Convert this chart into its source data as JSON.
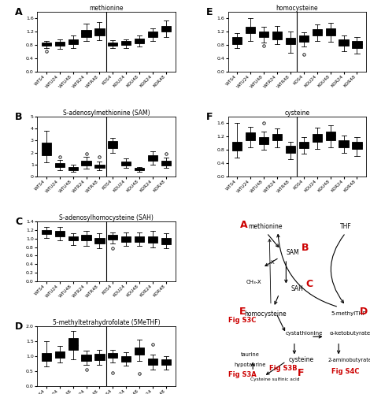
{
  "panels": {
    "A": {
      "title": "methionine",
      "label": "A",
      "ylim": [
        0,
        1.8
      ],
      "yticks": [
        0,
        0.4,
        0.8,
        1.2,
        1.6
      ],
      "groups": {
        "WT": {
          "WTS4": {
            "q1": 0.78,
            "med": 0.83,
            "q3": 0.88,
            "whislo": 0.7,
            "whishi": 0.93,
            "mean": 0.83,
            "fliers": [
              0.62
            ]
          },
          "WTU24": {
            "q1": 0.77,
            "med": 0.82,
            "q3": 0.9,
            "whislo": 0.68,
            "whishi": 0.98,
            "mean": 0.82,
            "fliers": []
          },
          "WTU48": {
            "q1": 0.82,
            "med": 0.9,
            "q3": 0.98,
            "whislo": 0.72,
            "whishi": 1.08,
            "mean": 0.9,
            "fliers": []
          },
          "WTR24": {
            "q1": 1.05,
            "med": 1.15,
            "q3": 1.25,
            "whislo": 0.92,
            "whishi": 1.45,
            "mean": 1.15,
            "fliers": []
          },
          "WTR48": {
            "q1": 1.1,
            "med": 1.2,
            "q3": 1.3,
            "whislo": 0.95,
            "whishi": 1.5,
            "mean": 1.2,
            "fliers": []
          }
        },
        "KO": {
          "KOS4": {
            "q1": 0.78,
            "med": 0.82,
            "q3": 0.88,
            "whislo": 0.7,
            "whishi": 0.94,
            "mean": 0.82,
            "fliers": []
          },
          "KOU24": {
            "q1": 0.8,
            "med": 0.85,
            "q3": 0.92,
            "whislo": 0.72,
            "whishi": 0.98,
            "mean": 0.85,
            "fliers": []
          },
          "KOU48": {
            "q1": 0.85,
            "med": 0.93,
            "q3": 1.0,
            "whislo": 0.75,
            "whishi": 1.1,
            "mean": 0.93,
            "fliers": []
          },
          "KOR24": {
            "q1": 1.05,
            "med": 1.12,
            "q3": 1.2,
            "whislo": 0.92,
            "whishi": 1.3,
            "mean": 1.12,
            "fliers": []
          },
          "KOR48": {
            "q1": 1.2,
            "med": 1.28,
            "q3": 1.38,
            "whislo": 1.05,
            "whishi": 1.55,
            "mean": 1.28,
            "fliers": []
          }
        }
      }
    },
    "B": {
      "title": "S-adenosylmethionine (SAM)",
      "label": "B",
      "ylim": [
        0,
        5
      ],
      "yticks": [
        0,
        1,
        2,
        3,
        4,
        5
      ],
      "groups": {
        "WT": {
          "WTS4": {
            "q1": 1.8,
            "med": 2.2,
            "q3": 2.8,
            "whislo": 1.2,
            "whishi": 3.8,
            "mean": 2.25,
            "fliers": []
          },
          "WTU24": {
            "q1": 0.8,
            "med": 0.95,
            "q3": 1.1,
            "whislo": 0.55,
            "whishi": 1.4,
            "mean": 0.95,
            "fliers": [
              1.65
            ]
          },
          "WTU48": {
            "q1": 0.55,
            "med": 0.7,
            "q3": 0.82,
            "whislo": 0.4,
            "whishi": 1.0,
            "mean": 0.7,
            "fliers": []
          },
          "WTR24": {
            "q1": 0.9,
            "med": 1.1,
            "q3": 1.3,
            "whislo": 0.65,
            "whishi": 1.65,
            "mean": 1.1,
            "fliers": [
              1.9
            ]
          },
          "WTR48": {
            "q1": 0.7,
            "med": 0.85,
            "q3": 1.0,
            "whislo": 0.5,
            "whishi": 1.25,
            "mean": 0.85,
            "fliers": [
              1.65
            ]
          }
        },
        "KO": {
          "KOS4": {
            "q1": 2.4,
            "med": 2.7,
            "q3": 2.95,
            "whislo": 2.0,
            "whishi": 3.2,
            "mean": 2.7,
            "fliers": []
          },
          "KOU24": {
            "q1": 0.95,
            "med": 1.1,
            "q3": 1.25,
            "whislo": 0.7,
            "whishi": 1.5,
            "mean": 1.1,
            "fliers": []
          },
          "KOU48": {
            "q1": 0.5,
            "med": 0.6,
            "q3": 0.7,
            "whislo": 0.38,
            "whishi": 0.82,
            "mean": 0.6,
            "fliers": []
          },
          "KOR24": {
            "q1": 1.3,
            "med": 1.55,
            "q3": 1.75,
            "whislo": 1.0,
            "whishi": 2.1,
            "mean": 1.55,
            "fliers": []
          },
          "KOR48": {
            "q1": 0.95,
            "med": 1.1,
            "q3": 1.3,
            "whislo": 0.7,
            "whishi": 1.6,
            "mean": 1.1,
            "fliers": [
              1.9
            ]
          }
        }
      }
    },
    "C": {
      "title": "S-adenosylhomocysteine (SAH)",
      "label": "C",
      "ylim": [
        0,
        1.4
      ],
      "yticks": [
        0,
        0.2,
        0.4,
        0.6,
        0.8,
        1.0,
        1.2,
        1.4
      ],
      "groups": {
        "WT": {
          "WTS4": {
            "q1": 1.1,
            "med": 1.15,
            "q3": 1.2,
            "whislo": 1.02,
            "whishi": 1.28,
            "mean": 1.15,
            "fliers": []
          },
          "WTU24": {
            "q1": 1.05,
            "med": 1.1,
            "q3": 1.18,
            "whislo": 0.95,
            "whishi": 1.28,
            "mean": 1.1,
            "fliers": []
          },
          "WTU48": {
            "q1": 0.95,
            "med": 1.0,
            "q3": 1.05,
            "whislo": 0.85,
            "whishi": 1.12,
            "mean": 1.0,
            "fliers": []
          },
          "WTR24": {
            "q1": 0.95,
            "med": 1.0,
            "q3": 1.08,
            "whislo": 0.82,
            "whishi": 1.18,
            "mean": 1.0,
            "fliers": []
          },
          "WTR48": {
            "q1": 0.88,
            "med": 0.95,
            "q3": 1.02,
            "whislo": 0.78,
            "whishi": 1.12,
            "mean": 0.95,
            "fliers": []
          }
        },
        "KO": {
          "KOS4": {
            "q1": 0.98,
            "med": 1.03,
            "q3": 1.08,
            "whislo": 0.88,
            "whishi": 1.15,
            "mean": 1.03,
            "fliers": [
              0.78
            ]
          },
          "KOU24": {
            "q1": 0.93,
            "med": 0.98,
            "q3": 1.05,
            "whislo": 0.83,
            "whishi": 1.15,
            "mean": 0.98,
            "fliers": []
          },
          "KOU48": {
            "q1": 0.92,
            "med": 0.98,
            "q3": 1.05,
            "whislo": 0.82,
            "whishi": 1.15,
            "mean": 0.98,
            "fliers": []
          },
          "KOR24": {
            "q1": 0.9,
            "med": 0.98,
            "q3": 1.05,
            "whislo": 0.8,
            "whishi": 1.18,
            "mean": 0.98,
            "fliers": []
          },
          "KOR48": {
            "q1": 0.87,
            "med": 0.95,
            "q3": 1.02,
            "whislo": 0.78,
            "whishi": 1.12,
            "mean": 0.95,
            "fliers": []
          }
        }
      }
    },
    "D": {
      "title": "5-methyltetrahydrofolate (5MeTHF)",
      "label": "D",
      "ylim": [
        0,
        2
      ],
      "yticks": [
        0,
        0.5,
        1.0,
        1.5,
        2.0
      ],
      "groups": {
        "WT": {
          "WTS4": {
            "q1": 0.85,
            "med": 1.0,
            "q3": 1.1,
            "whislo": 0.65,
            "whishi": 1.5,
            "mean": 1.0,
            "fliers": []
          },
          "WTU24": {
            "q1": 0.95,
            "med": 1.05,
            "q3": 1.15,
            "whislo": 0.78,
            "whishi": 1.35,
            "mean": 1.05,
            "fliers": []
          },
          "WTU48": {
            "q1": 1.2,
            "med": 1.38,
            "q3": 1.6,
            "whislo": 0.9,
            "whishi": 1.85,
            "mean": 1.4,
            "fliers": []
          },
          "WTR24": {
            "q1": 0.85,
            "med": 0.95,
            "q3": 1.05,
            "whislo": 0.7,
            "whishi": 1.18,
            "mean": 0.95,
            "fliers": [
              0.55
            ]
          },
          "WTR48": {
            "q1": 0.88,
            "med": 0.98,
            "q3": 1.08,
            "whislo": 0.72,
            "whishi": 1.22,
            "mean": 0.98,
            "fliers": []
          }
        },
        "KO": {
          "KOS4": {
            "q1": 0.95,
            "med": 1.02,
            "q3": 1.1,
            "whislo": 0.8,
            "whishi": 1.2,
            "mean": 1.02,
            "fliers": [
              0.45
            ]
          },
          "KOU24": {
            "q1": 0.82,
            "med": 0.92,
            "q3": 1.0,
            "whislo": 0.68,
            "whishi": 1.12,
            "mean": 0.92,
            "fliers": []
          },
          "KOU48": {
            "q1": 1.05,
            "med": 1.18,
            "q3": 1.3,
            "whislo": 0.85,
            "whishi": 1.55,
            "mean": 1.18,
            "fliers": [
              0.42
            ]
          },
          "KOR24": {
            "q1": 0.72,
            "med": 0.82,
            "q3": 0.93,
            "whislo": 0.55,
            "whishi": 1.05,
            "mean": 0.82,
            "fliers": [
              1.4
            ]
          },
          "KOR48": {
            "q1": 0.7,
            "med": 0.8,
            "q3": 0.9,
            "whislo": 0.55,
            "whishi": 1.0,
            "mean": 0.8,
            "fliers": []
          }
        }
      }
    },
    "E": {
      "title": "homocysteine",
      "label": "E",
      "ylim": [
        0,
        1.8
      ],
      "yticks": [
        0,
        0.4,
        0.8,
        1.2,
        1.6
      ],
      "groups": {
        "WT": {
          "WTS4": {
            "q1": 0.82,
            "med": 0.95,
            "q3": 1.05,
            "whislo": 0.7,
            "whishi": 1.15,
            "mean": 0.93,
            "fliers": []
          },
          "WTU24": {
            "q1": 1.15,
            "med": 1.25,
            "q3": 1.35,
            "whislo": 0.92,
            "whishi": 1.6,
            "mean": 1.25,
            "fliers": []
          },
          "WTU48": {
            "q1": 1.05,
            "med": 1.12,
            "q3": 1.2,
            "whislo": 0.88,
            "whishi": 1.35,
            "mean": 1.12,
            "fliers": [
              0.78
            ]
          },
          "WTR24": {
            "q1": 0.98,
            "med": 1.1,
            "q3": 1.2,
            "whislo": 0.82,
            "whishi": 1.38,
            "mean": 1.1,
            "fliers": []
          },
          "WTR48": {
            "q1": 0.82,
            "med": 0.92,
            "q3": 1.02,
            "whislo": 0.58,
            "whishi": 1.2,
            "mean": 0.92,
            "fliers": []
          }
        },
        "KO": {
          "KOS4": {
            "q1": 0.9,
            "med": 0.98,
            "q3": 1.08,
            "whislo": 0.75,
            "whishi": 1.18,
            "mean": 0.98,
            "fliers": [
              0.52
            ]
          },
          "KOU24": {
            "q1": 1.1,
            "med": 1.18,
            "q3": 1.28,
            "whislo": 0.92,
            "whishi": 1.42,
            "mean": 1.18,
            "fliers": []
          },
          "KOU48": {
            "q1": 1.1,
            "med": 1.2,
            "q3": 1.3,
            "whislo": 0.9,
            "whishi": 1.48,
            "mean": 1.2,
            "fliers": []
          },
          "KOR24": {
            "q1": 0.78,
            "med": 0.88,
            "q3": 0.98,
            "whislo": 0.62,
            "whishi": 1.1,
            "mean": 0.88,
            "fliers": []
          },
          "KOR48": {
            "q1": 0.72,
            "med": 0.82,
            "q3": 0.92,
            "whislo": 0.55,
            "whishi": 1.05,
            "mean": 0.82,
            "fliers": []
          }
        }
      }
    },
    "F": {
      "title": "cysteine",
      "label": "F",
      "ylim": [
        0,
        1.8
      ],
      "yticks": [
        0,
        0.4,
        0.8,
        1.2,
        1.6
      ],
      "groups": {
        "WT": {
          "WTS4": {
            "q1": 0.78,
            "med": 0.92,
            "q3": 1.05,
            "whislo": 0.58,
            "whishi": 1.6,
            "mean": 0.92,
            "fliers": []
          },
          "WTU24": {
            "q1": 1.1,
            "med": 1.2,
            "q3": 1.32,
            "whislo": 0.88,
            "whishi": 1.5,
            "mean": 1.2,
            "fliers": []
          },
          "WTU48": {
            "q1": 0.98,
            "med": 1.1,
            "q3": 1.18,
            "whislo": 0.8,
            "whishi": 1.35,
            "mean": 1.1,
            "fliers": [
              1.6
            ]
          },
          "WTR24": {
            "q1": 1.08,
            "med": 1.18,
            "q3": 1.28,
            "whislo": 0.88,
            "whishi": 1.45,
            "mean": 1.18,
            "fliers": []
          },
          "WTR48": {
            "q1": 0.72,
            "med": 0.82,
            "q3": 0.92,
            "whislo": 0.52,
            "whishi": 1.05,
            "mean": 0.82,
            "fliers": []
          }
        },
        "KO": {
          "KOS4": {
            "q1": 0.85,
            "med": 0.95,
            "q3": 1.05,
            "whislo": 0.68,
            "whishi": 1.18,
            "mean": 0.95,
            "fliers": []
          },
          "KOU24": {
            "q1": 1.05,
            "med": 1.15,
            "q3": 1.28,
            "whislo": 0.82,
            "whishi": 1.48,
            "mean": 1.15,
            "fliers": []
          },
          "KOU48": {
            "q1": 1.1,
            "med": 1.22,
            "q3": 1.35,
            "whislo": 0.88,
            "whishi": 1.55,
            "mean": 1.22,
            "fliers": []
          },
          "KOR24": {
            "q1": 0.88,
            "med": 0.98,
            "q3": 1.08,
            "whislo": 0.7,
            "whishi": 1.22,
            "mean": 0.98,
            "fliers": []
          },
          "KOR48": {
            "q1": 0.82,
            "med": 0.95,
            "q3": 1.05,
            "whislo": 0.62,
            "whishi": 1.18,
            "mean": 0.95,
            "fliers": []
          }
        }
      }
    }
  },
  "colors": {
    "WTS4": "#ffffff",
    "WTU24": "#4dd0e1",
    "WTU48": "#00838f",
    "WTR24": "#3f51b5",
    "WTR48": "#1a237e",
    "KOS4": "#eeeeee",
    "KOU24": "#f48fb1",
    "KOU48": "#e91e63",
    "KOR24": "#b71c1c",
    "KOR48": "#d50000"
  },
  "group_order_wt": [
    "WTS4",
    "WTU24",
    "WTU48",
    "WTR24",
    "WTR48"
  ],
  "group_order_ko": [
    "KOS4",
    "KOU24",
    "KOU48",
    "KOR24",
    "KOR48"
  ],
  "panel_label_color": "black",
  "divline_color": "black",
  "pathway_red": "#cc0000"
}
